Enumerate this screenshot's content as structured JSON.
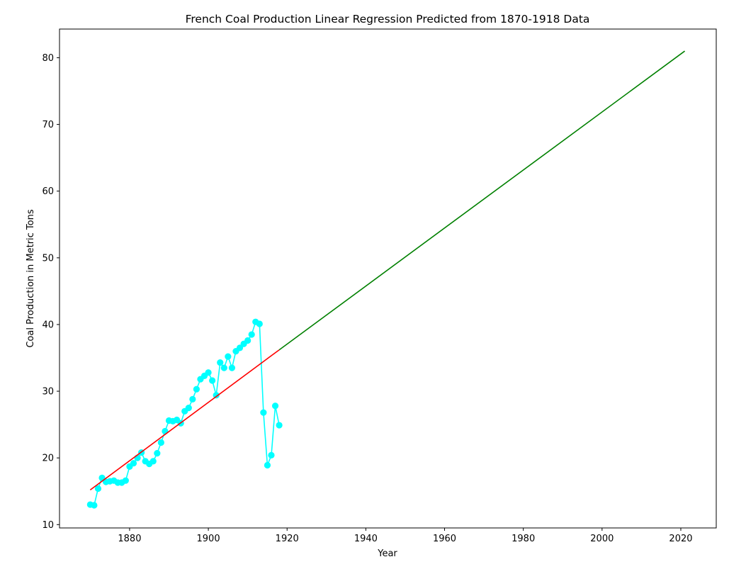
{
  "chart_data": {
    "type": "line",
    "title": "French Coal Production Linear Regression Predicted from 1870-1918 Data",
    "xlabel": "Year",
    "ylabel": "Coal Production in Metric Tons",
    "xlim": [
      1862.2,
      2029.0
    ],
    "ylim": [
      9.5,
      84.3
    ],
    "xticks": [
      1880,
      1900,
      1920,
      1940,
      1960,
      1980,
      2000,
      2020
    ],
    "yticks": [
      10,
      20,
      30,
      40,
      50,
      60,
      70,
      80
    ],
    "grid": false,
    "series": [
      {
        "kind": "observed",
        "color": "#00ffff",
        "marker": "circle",
        "x": [
          1870,
          1871,
          1872,
          1873,
          1874,
          1875,
          1876,
          1877,
          1878,
          1879,
          1880,
          1881,
          1882,
          1883,
          1884,
          1885,
          1886,
          1887,
          1888,
          1889,
          1890,
          1891,
          1892,
          1893,
          1894,
          1895,
          1896,
          1897,
          1898,
          1899,
          1900,
          1901,
          1902,
          1903,
          1904,
          1905,
          1906,
          1907,
          1908,
          1909,
          1910,
          1911,
          1912,
          1913,
          1914,
          1915,
          1916,
          1917,
          1918
        ],
        "y": [
          13.0,
          12.9,
          15.4,
          17.0,
          16.4,
          16.5,
          16.6,
          16.3,
          16.3,
          16.6,
          18.7,
          19.2,
          20.0,
          20.8,
          19.5,
          19.1,
          19.5,
          20.7,
          22.3,
          24.0,
          25.6,
          25.5,
          25.7,
          25.2,
          27.0,
          27.5,
          28.8,
          30.3,
          31.8,
          32.3,
          32.8,
          31.6,
          29.4,
          34.3,
          33.5,
          35.2,
          33.5,
          36.0,
          36.5,
          37.1,
          37.6,
          38.5,
          40.4,
          40.1,
          26.8,
          18.9,
          20.4,
          27.8,
          24.9
        ]
      },
      {
        "kind": "fit",
        "color": "#ff0000",
        "x": [
          1870,
          1918
        ],
        "y": [
          15.2,
          36.2
        ]
      },
      {
        "kind": "prediction",
        "color": "#008000",
        "x": [
          1918,
          2021
        ],
        "y": [
          36.2,
          81.0
        ]
      }
    ]
  }
}
